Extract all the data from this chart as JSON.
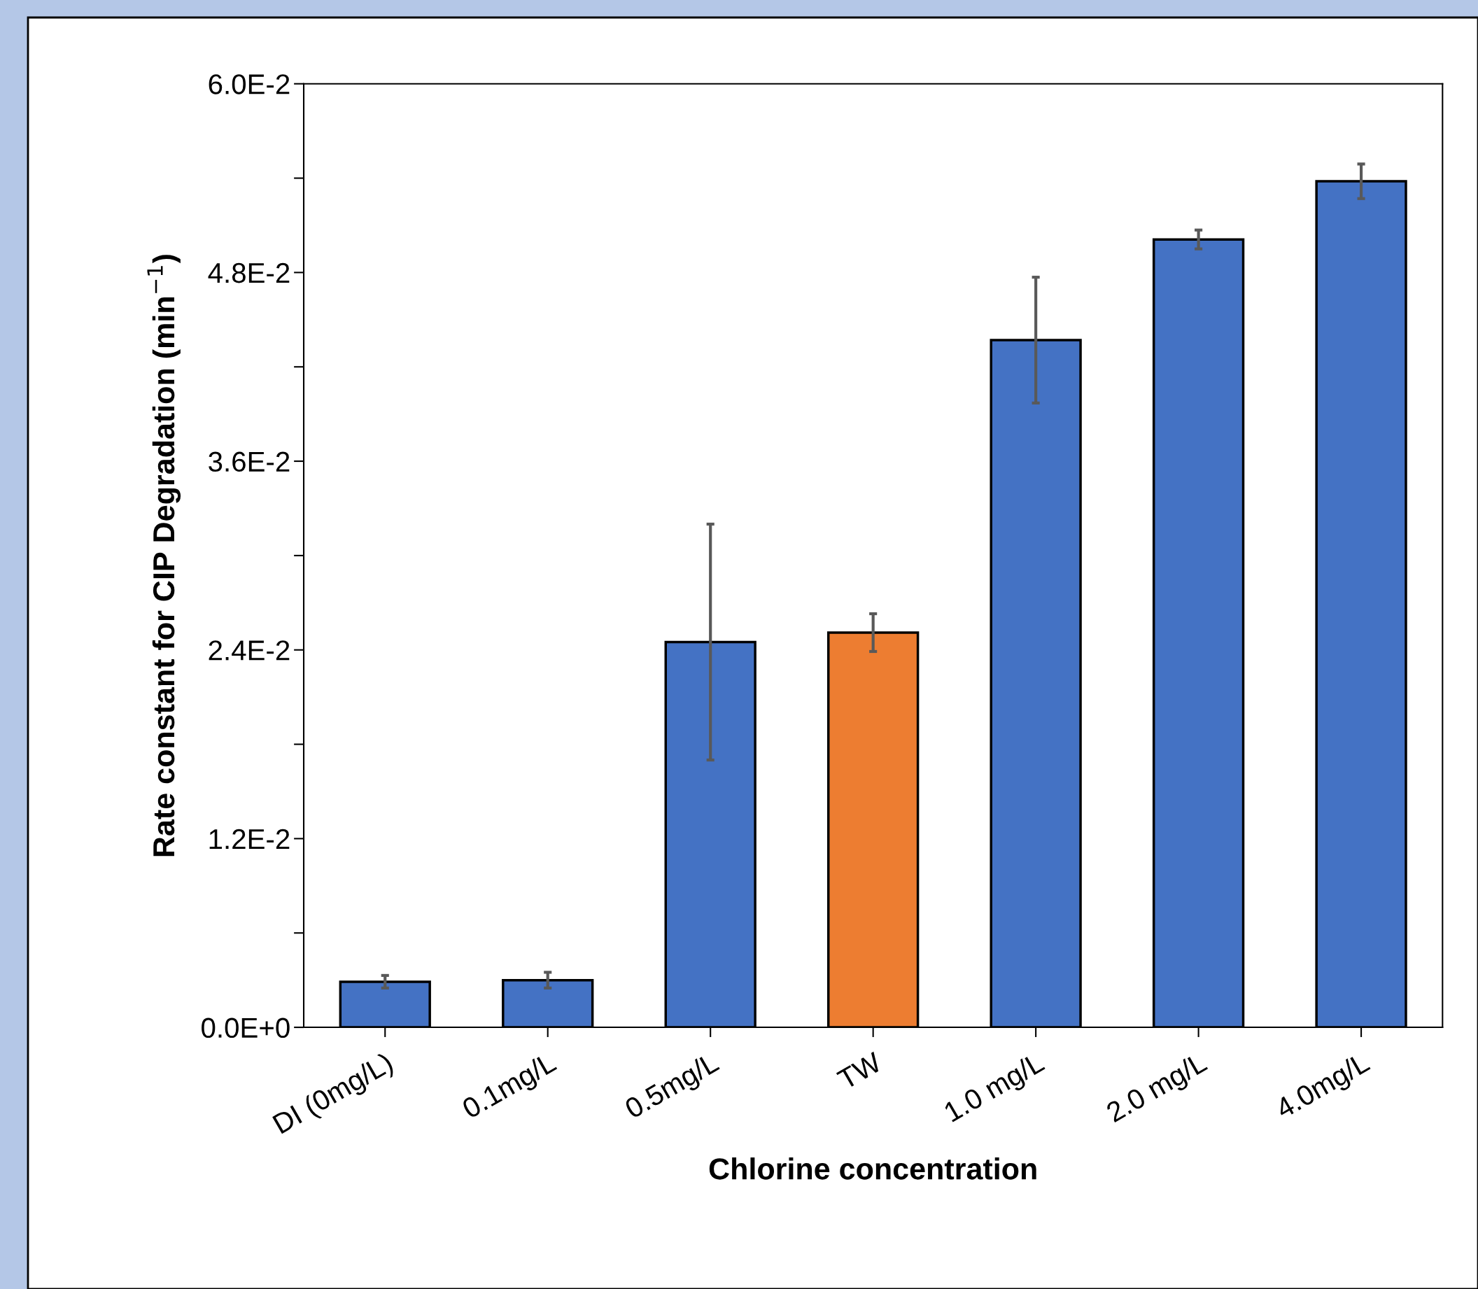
{
  "chart_data": {
    "type": "bar",
    "xlabel": "Chlorine concentration",
    "ylabel": "Rate constant for CIP Degradation (min$^{−1}$)",
    "categories": [
      "DI (0mg/L)",
      "0.1mg/L",
      "0.5mg/L",
      "TW",
      "1.0 mg/L",
      "2.0 mg/L",
      "4.0mg/L"
    ],
    "values": [
      0.0029,
      0.003,
      0.0245,
      0.0251,
      0.0437,
      0.0501,
      0.0538
    ],
    "colors": [
      "#4472c4",
      "#4472c4",
      "#4472c4",
      "#ed7d31",
      "#4472c4",
      "#4472c4",
      "#4472c4"
    ],
    "errors": [
      0.0004,
      0.0005,
      0.0075,
      0.0012,
      0.004,
      0.0006,
      0.0011
    ],
    "ylim": [
      0,
      0.06
    ],
    "yticks": [
      {
        "value": 0,
        "label": "0.0E+0"
      },
      {
        "value": 0.006,
        "label": null
      },
      {
        "value": 0.012,
        "label": "1.2E-2"
      },
      {
        "value": 0.018,
        "label": null
      },
      {
        "value": 0.024,
        "label": "2.4E-2"
      },
      {
        "value": 0.03,
        "label": null
      },
      {
        "value": 0.036,
        "label": "3.6E-2"
      },
      {
        "value": 0.042,
        "label": null
      },
      {
        "value": 0.048,
        "label": "4.8E-2"
      },
      {
        "value": 0.054,
        "label": null
      },
      {
        "value": 0.06,
        "label": "6.0E-2"
      }
    ],
    "grid": false,
    "legend": false
  }
}
